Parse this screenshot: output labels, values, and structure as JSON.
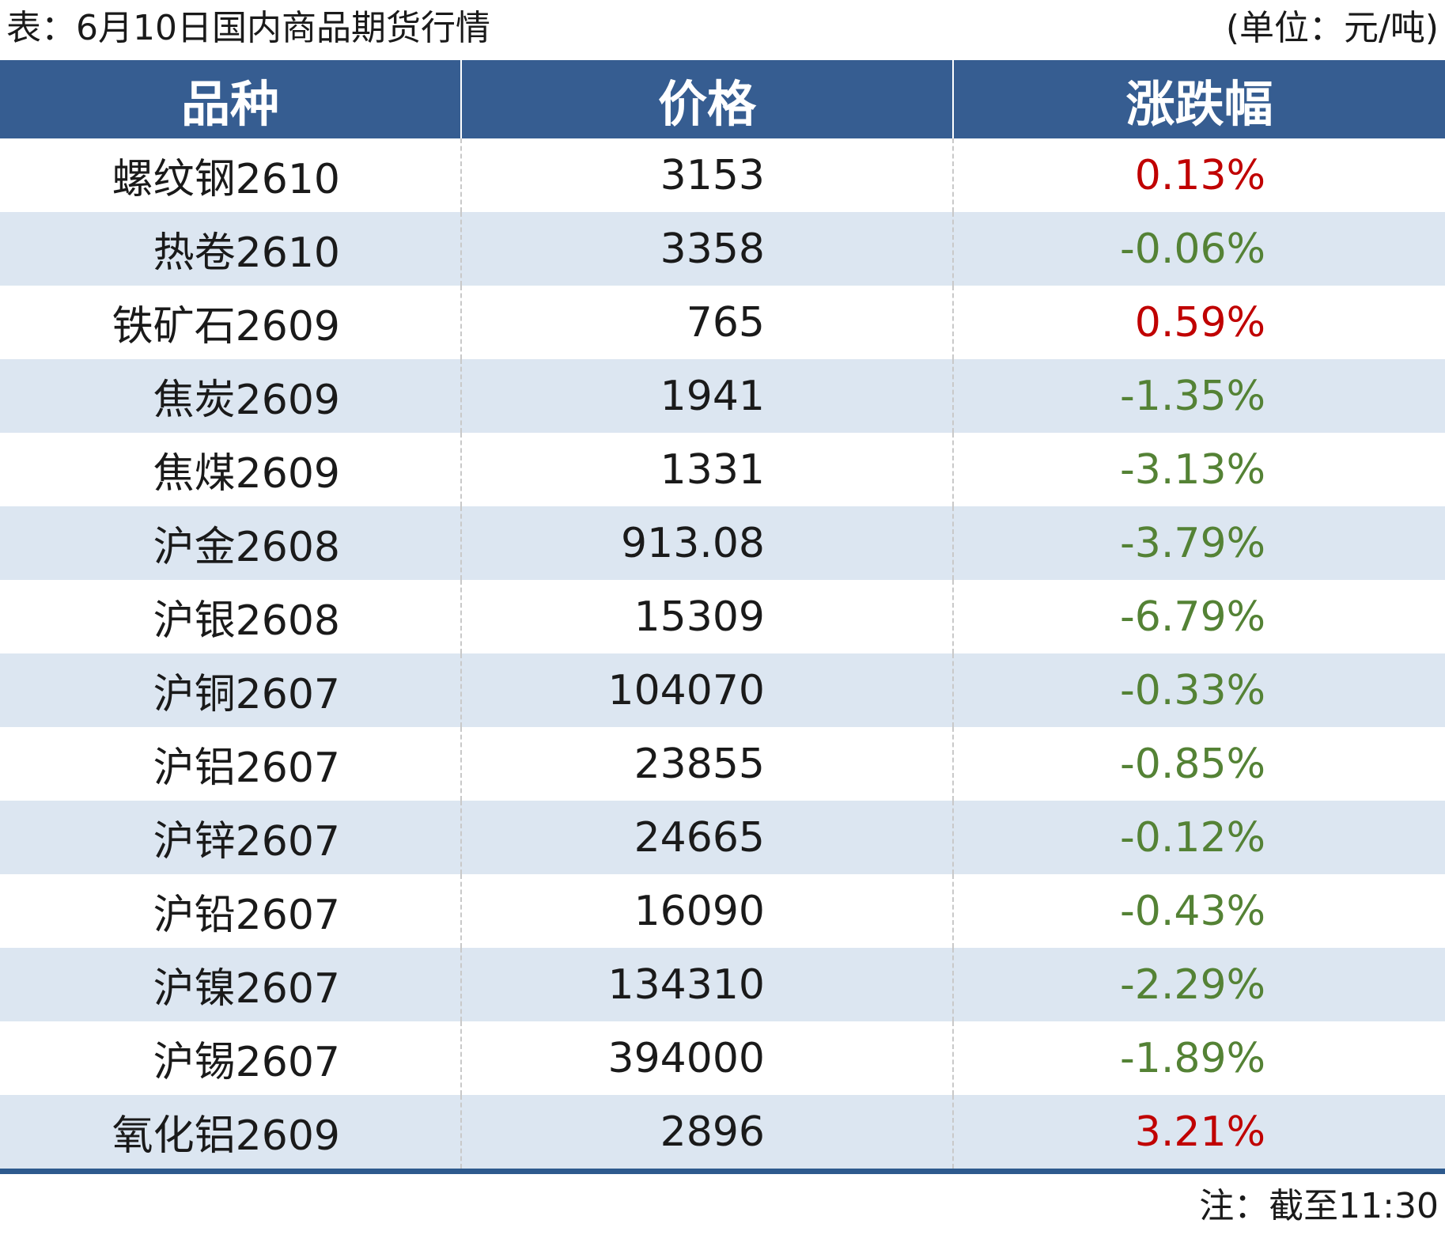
{
  "header": {
    "title": "表：6月10日国内商品期货行情",
    "unit": "(单位：元/吨)"
  },
  "table": {
    "columns": [
      "品种",
      "价格",
      "涨跌幅"
    ],
    "rows": [
      [
        "螺纹钢2610",
        "3153",
        "0.13%"
      ],
      [
        "热卷2610",
        "3358",
        "-0.06%"
      ],
      [
        "铁矿石2609",
        "765",
        "0.59%"
      ],
      [
        "焦炭2609",
        "1941",
        "-1.35%"
      ],
      [
        "焦煤2609",
        "1331",
        "-3.13%"
      ],
      [
        "沪金2608",
        "913.08",
        "-3.79%"
      ],
      [
        "沪银2608",
        "15309",
        "-6.79%"
      ],
      [
        "沪铜2607",
        "104070",
        "-0.33%"
      ],
      [
        "沪铝2607",
        "23855",
        "-0.85%"
      ],
      [
        "沪锌2607",
        "24665",
        "-0.12%"
      ],
      [
        "沪铅2607",
        "16090",
        "-0.43%"
      ],
      [
        "沪镍2607",
        "134310",
        "-2.29%"
      ],
      [
        "沪锡2607",
        "394000",
        "-1.89%"
      ],
      [
        "氧化铝2609",
        "2896",
        "3.21%"
      ]
    ]
  },
  "footer": {
    "note": "注：截至11:30"
  }
}
